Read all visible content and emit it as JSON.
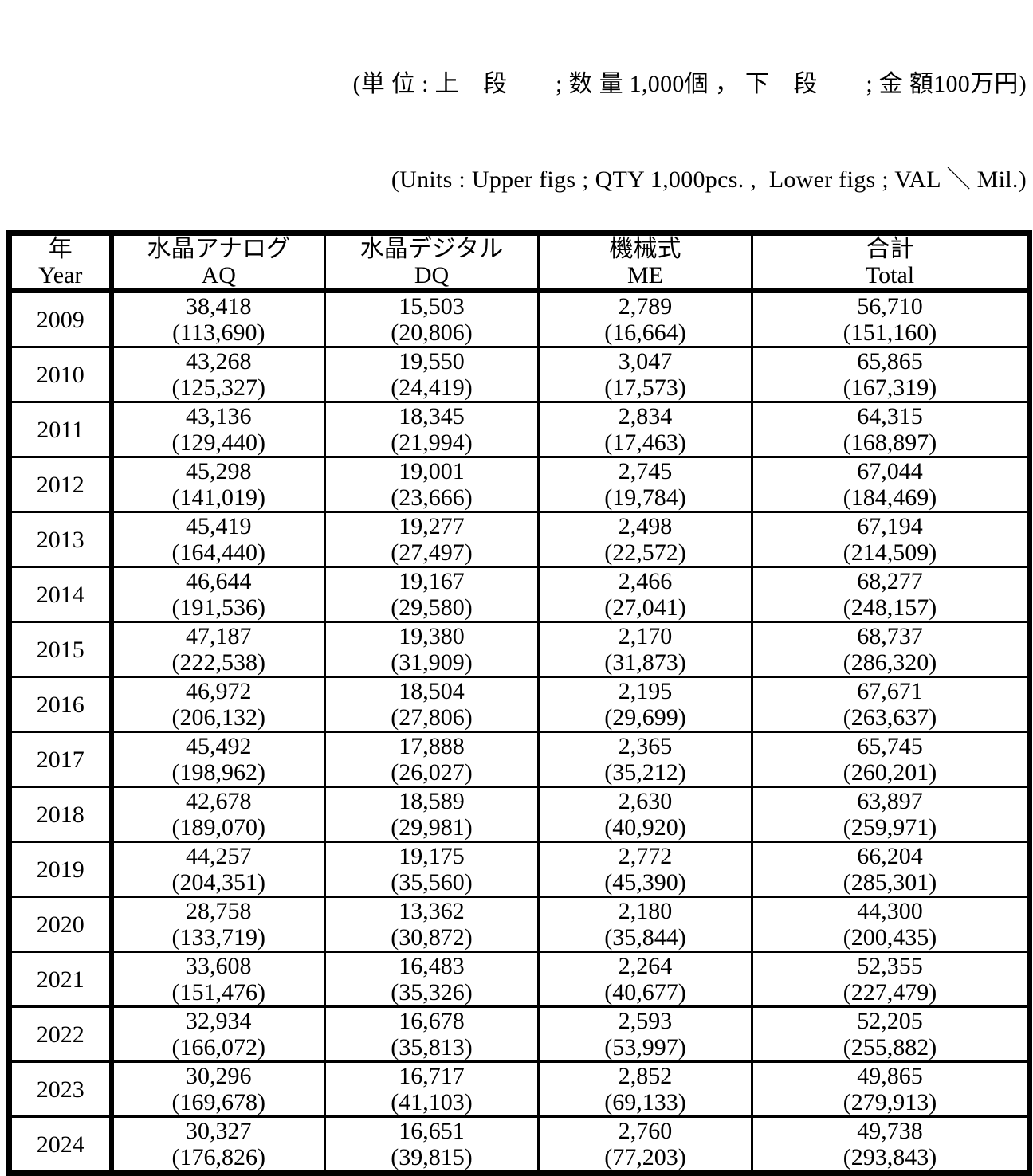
{
  "notes": {
    "jp": "(単 位 : 上　段　　; 数 量 1,000個 ， 下　段　　; 金 額100万円)",
    "en": "(Units : Upper figs ; QTY 1,000pcs. ,  Lower figs ; VAL ＼ Mil.)"
  },
  "table": {
    "columns": [
      {
        "jp": "年",
        "en": "Year"
      },
      {
        "jp": "水晶アナログ",
        "en": "AQ"
      },
      {
        "jp": "水晶デジタル",
        "en": "DQ"
      },
      {
        "jp": "機械式",
        "en": "ME"
      },
      {
        "jp": "合計",
        "en": "Total"
      }
    ],
    "column_keys": [
      "aq",
      "dq",
      "me",
      "total"
    ],
    "rows": [
      {
        "year": "2009",
        "cells": [
          [
            "38,418",
            "(113,690)"
          ],
          [
            "15,503",
            "(20,806)"
          ],
          [
            "2,789",
            "(16,664)"
          ],
          [
            "56,710",
            "(151,160)"
          ]
        ]
      },
      {
        "year": "2010",
        "cells": [
          [
            "43,268",
            "(125,327)"
          ],
          [
            "19,550",
            "(24,419)"
          ],
          [
            "3,047",
            "(17,573)"
          ],
          [
            "65,865",
            "(167,319)"
          ]
        ]
      },
      {
        "year": "2011",
        "cells": [
          [
            "43,136",
            "(129,440)"
          ],
          [
            "18,345",
            "(21,994)"
          ],
          [
            "2,834",
            "(17,463)"
          ],
          [
            "64,315",
            "(168,897)"
          ]
        ]
      },
      {
        "year": "2012",
        "cells": [
          [
            "45,298",
            "(141,019)"
          ],
          [
            "19,001",
            "(23,666)"
          ],
          [
            "2,745",
            "(19,784)"
          ],
          [
            "67,044",
            "(184,469)"
          ]
        ]
      },
      {
        "year": "2013",
        "cells": [
          [
            "45,419",
            "(164,440)"
          ],
          [
            "19,277",
            "(27,497)"
          ],
          [
            "2,498",
            "(22,572)"
          ],
          [
            "67,194",
            "(214,509)"
          ]
        ]
      },
      {
        "year": "2014",
        "cells": [
          [
            "46,644",
            "(191,536)"
          ],
          [
            "19,167",
            "(29,580)"
          ],
          [
            "2,466",
            "(27,041)"
          ],
          [
            "68,277",
            "(248,157)"
          ]
        ]
      },
      {
        "year": "2015",
        "cells": [
          [
            "47,187",
            "(222,538)"
          ],
          [
            "19,380",
            "(31,909)"
          ],
          [
            "2,170",
            "(31,873)"
          ],
          [
            "68,737",
            "(286,320)"
          ]
        ]
      },
      {
        "year": "2016",
        "cells": [
          [
            "46,972",
            "(206,132)"
          ],
          [
            "18,504",
            "(27,806)"
          ],
          [
            "2,195",
            "(29,699)"
          ],
          [
            "67,671",
            "(263,637)"
          ]
        ]
      },
      {
        "year": "2017",
        "cells": [
          [
            "45,492",
            "(198,962)"
          ],
          [
            "17,888",
            "(26,027)"
          ],
          [
            "2,365",
            "(35,212)"
          ],
          [
            "65,745",
            "(260,201)"
          ]
        ]
      },
      {
        "year": "2018",
        "cells": [
          [
            "42,678",
            "(189,070)"
          ],
          [
            "18,589",
            "(29,981)"
          ],
          [
            "2,630",
            "(40,920)"
          ],
          [
            "63,897",
            "(259,971)"
          ]
        ]
      },
      {
        "year": "2019",
        "cells": [
          [
            "44,257",
            "(204,351)"
          ],
          [
            "19,175",
            "(35,560)"
          ],
          [
            "2,772",
            "(45,390)"
          ],
          [
            "66,204",
            "(285,301)"
          ]
        ]
      },
      {
        "year": "2020",
        "cells": [
          [
            "28,758",
            "(133,719)"
          ],
          [
            "13,362",
            "(30,872)"
          ],
          [
            "2,180",
            "(35,844)"
          ],
          [
            "44,300",
            "(200,435)"
          ]
        ]
      },
      {
        "year": "2021",
        "cells": [
          [
            "33,608",
            "(151,476)"
          ],
          [
            "16,483",
            "(35,326)"
          ],
          [
            "2,264",
            "(40,677)"
          ],
          [
            "52,355",
            "(227,479)"
          ]
        ]
      },
      {
        "year": "2022",
        "cells": [
          [
            "32,934",
            "(166,072)"
          ],
          [
            "16,678",
            "(35,813)"
          ],
          [
            "2,593",
            "(53,997)"
          ],
          [
            "52,205",
            "(255,882)"
          ]
        ]
      },
      {
        "year": "2023",
        "cells": [
          [
            "30,296",
            "(169,678)"
          ],
          [
            "16,717",
            "(41,103)"
          ],
          [
            "2,852",
            "(69,133)"
          ],
          [
            "49,865",
            "(279,913)"
          ]
        ]
      },
      {
        "year": "2024",
        "cells": [
          [
            "30,327",
            "(176,826)"
          ],
          [
            "16,651",
            "(39,815)"
          ],
          [
            "2,760",
            "(77,203)"
          ],
          [
            "49,738",
            "(293,843)"
          ]
        ]
      }
    ]
  }
}
